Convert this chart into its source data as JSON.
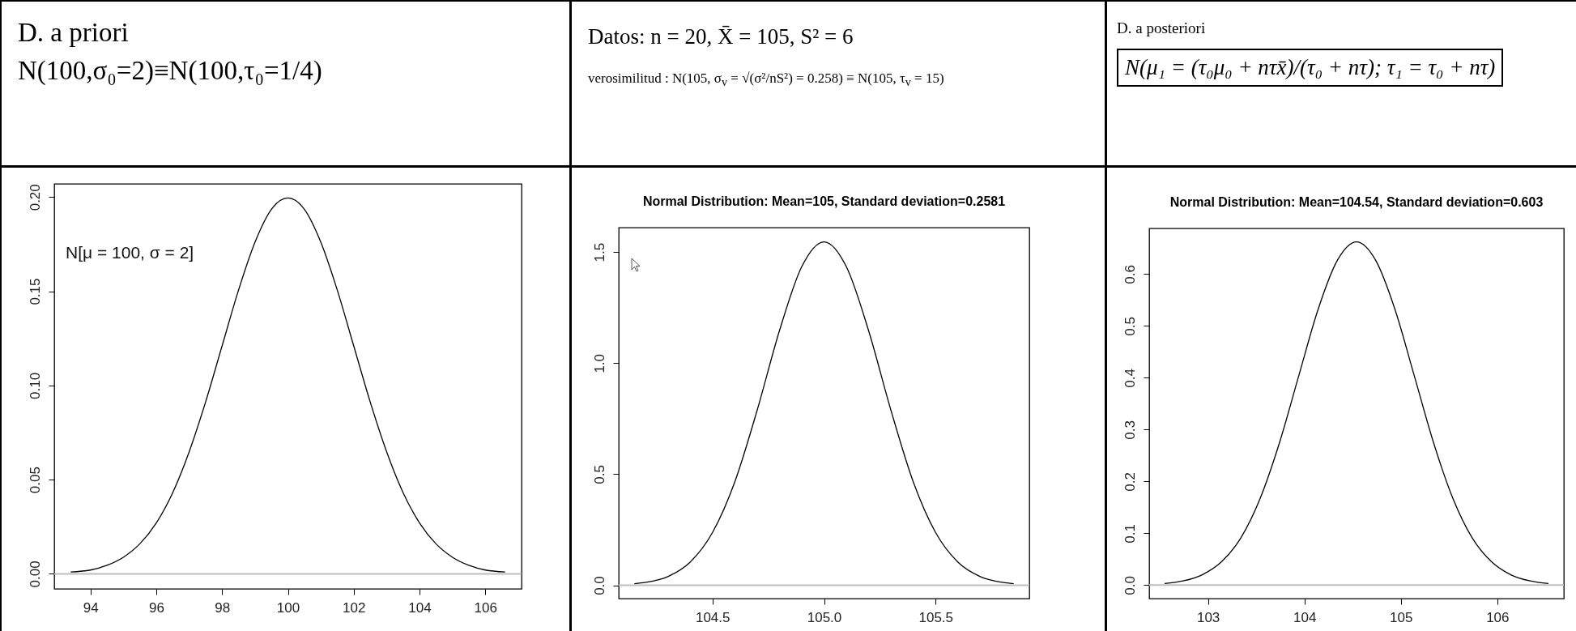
{
  "chart_data": [
    {
      "type": "other",
      "title": "D. a priori",
      "annotations": [
        "N(100,σ₀=2)≡N(100,τ₀=1/4)"
      ]
    },
    {
      "type": "other",
      "title": "Datos: n = 20,   X̄ = 105, S² = 6",
      "annotations": [
        "verosimilitud : N(105, σ$_{v}$ = √(σ²/nS²) = 0.258) ≡ N(105, τ$_{v}$ = 15)"
      ]
    },
    {
      "type": "other",
      "title": "D. a posteriori",
      "annotations": [
        "N(μ₁ = (τ₀μ₀ + nτx̄)/(τ₀ + nτ); τ₁ = τ₀ + nτ)"
      ]
    },
    {
      "type": "line",
      "color": "#000000",
      "annotations": [
        "N[μ = 100, σ = 2]"
      ],
      "x": [
        93.4,
        94,
        94.5,
        95,
        95.5,
        96,
        96.5,
        97,
        97.5,
        98,
        98.5,
        99,
        99.5,
        100,
        100.5,
        101,
        101.5,
        102,
        102.5,
        103,
        103.5,
        104,
        104.5,
        105,
        105.5,
        106,
        106.6
      ],
      "values": [
        0.001,
        0.002,
        0.0045,
        0.0088,
        0.0159,
        0.027,
        0.0431,
        0.0648,
        0.0913,
        0.121,
        0.1506,
        0.176,
        0.1935,
        0.1995,
        0.1935,
        0.176,
        0.1506,
        0.121,
        0.0913,
        0.0648,
        0.0431,
        0.027,
        0.0159,
        0.0088,
        0.0045,
        0.002,
        0.001
      ],
      "xlim": [
        92.9,
        107.1
      ],
      "ylim": [
        -0.008,
        0.207
      ],
      "xticks": [
        94,
        96,
        98,
        100,
        102,
        104,
        106
      ],
      "yticks": [
        {
          "value": 0,
          "label": "0.00"
        },
        0.05,
        {
          "value": 0.1,
          "label": "0.10"
        },
        0.15,
        {
          "value": 0.2,
          "label": "0.20"
        }
      ],
      "ref_lines": [
        {
          "axis": "y",
          "value": 0,
          "color": "#bebebe"
        }
      ]
    },
    {
      "type": "line",
      "color": "#000000",
      "title": "Normal Distribution:  Mean=105, Standard deviation=0.2581",
      "x": [
        104.15,
        104.2,
        104.3,
        104.4,
        104.5,
        104.6,
        104.7,
        104.8,
        104.9,
        105,
        105.1,
        105.2,
        105.3,
        105.4,
        105.5,
        105.6,
        105.7,
        105.8,
        105.85
      ],
      "values": [
        0.007,
        0.013,
        0.039,
        0.104,
        0.237,
        0.465,
        0.787,
        1.145,
        1.434,
        1.546,
        1.434,
        1.145,
        0.787,
        0.465,
        0.237,
        0.104,
        0.039,
        0.013,
        0.007
      ],
      "xlim": [
        104.08,
        105.92
      ],
      "ylim": [
        -0.06,
        1.61
      ],
      "xticks": [
        104.5,
        {
          "value": 105,
          "label": "105.0"
        },
        105.5
      ],
      "yticks": [
        {
          "value": 0,
          "label": "0.0"
        },
        0.5,
        {
          "value": 1,
          "label": "1.0"
        },
        1.5
      ],
      "ref_lines": [
        {
          "axis": "y",
          "value": 0,
          "color": "#bebebe"
        }
      ]
    },
    {
      "type": "line",
      "color": "#000000",
      "title": "Normal Distribution:  Mean=104.54, Standard deviation=0.603",
      "x": [
        102.55,
        102.74,
        102.94,
        103.14,
        103.34,
        103.54,
        103.74,
        103.94,
        104.14,
        104.34,
        104.54,
        104.74,
        104.94,
        105.14,
        105.34,
        105.54,
        105.74,
        105.94,
        106.14,
        106.34,
        106.53
      ],
      "values": [
        0.003,
        0.008,
        0.02,
        0.045,
        0.091,
        0.167,
        0.274,
        0.403,
        0.531,
        0.626,
        0.662,
        0.626,
        0.531,
        0.403,
        0.274,
        0.167,
        0.091,
        0.045,
        0.02,
        0.008,
        0.003
      ],
      "xlim": [
        102.39,
        106.69
      ],
      "ylim": [
        -0.026,
        0.688
      ],
      "xticks": [
        103,
        104,
        105,
        106
      ],
      "yticks": [
        {
          "value": 0,
          "label": "0.0"
        },
        0.1,
        0.2,
        0.3,
        0.4,
        0.5,
        0.6
      ],
      "ref_lines": [
        {
          "axis": "y",
          "value": 0,
          "color": "#bebebe"
        }
      ]
    }
  ]
}
